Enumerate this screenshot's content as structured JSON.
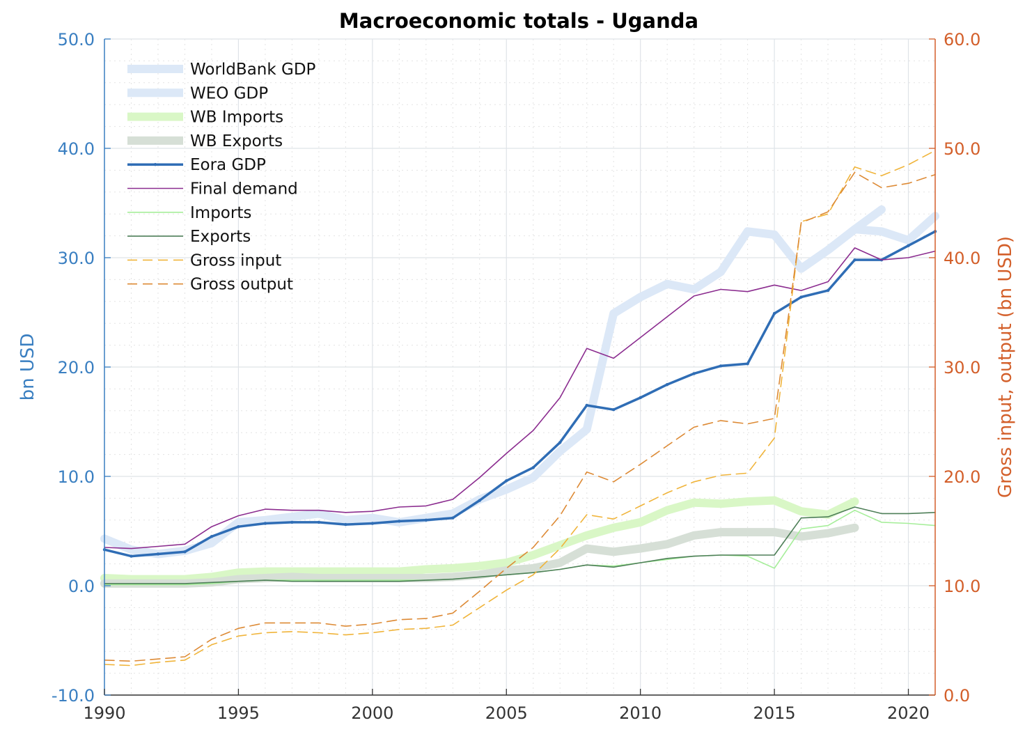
{
  "chart_data": {
    "type": "line",
    "title": "Macroeconomic totals - Uganda",
    "ylabel_left": "bn USD",
    "ylabel_right": "Gross input, output (bn USD)",
    "xlim": [
      1990,
      2021
    ],
    "ylim_left": [
      -10,
      50
    ],
    "ylim_right": [
      0,
      60
    ],
    "x_ticks": [
      1990,
      1995,
      2000,
      2005,
      2010,
      2015,
      2020
    ],
    "y_ticks_left": [
      "-10.0",
      "0.0",
      "10.0",
      "20.0",
      "30.0",
      "40.0",
      "50.0"
    ],
    "y_ticks_right": [
      "0.0",
      "10.0",
      "20.0",
      "30.0",
      "40.0",
      "50.0",
      "60.0"
    ],
    "grid": true,
    "legend_position": "top-left",
    "series": [
      {
        "name": "WorldBank GDP",
        "axis": "left",
        "color": "#dce8f7",
        "style": "thick",
        "x": [
          1990,
          1991,
          1992,
          1993,
          1994,
          1995,
          1996,
          1997,
          1998,
          1999,
          2000,
          2001,
          2002,
          2003,
          2004,
          2005,
          2006,
          2007,
          2008,
          2009,
          2010,
          2011,
          2012,
          2013,
          2014,
          2015,
          2016,
          2017,
          2018,
          2019
        ],
        "y": [
          4.3,
          3.3,
          2.9,
          3.2,
          3.9,
          5.8,
          6.0,
          6.3,
          6.6,
          6.0,
          6.2,
          5.8,
          6.2,
          6.6,
          7.9,
          8.8,
          9.9,
          12.3,
          14.3,
          24.9,
          26.4,
          27.6,
          27.1,
          28.7,
          32.4,
          32.1,
          29.0,
          30.7,
          32.6,
          34.4
        ]
      },
      {
        "name": "WEO GDP",
        "axis": "left",
        "color": "#dce8f7",
        "style": "thick",
        "x": [
          2015,
          2016,
          2017,
          2018,
          2019,
          2020,
          2021
        ],
        "y": [
          32.1,
          29.0,
          30.7,
          32.6,
          32.4,
          31.6,
          33.8
        ]
      },
      {
        "name": "WB Imports",
        "axis": "left",
        "color": "#d9f7c6",
        "style": "thick",
        "x": [
          1990,
          1991,
          1992,
          1993,
          1994,
          1995,
          1996,
          1997,
          1998,
          1999,
          2000,
          2001,
          2002,
          2003,
          2004,
          2005,
          2006,
          2007,
          2008,
          2009,
          2010,
          2011,
          2012,
          2013,
          2014,
          2015,
          2016,
          2017,
          2018
        ],
        "y": [
          0.7,
          0.6,
          0.6,
          0.6,
          0.8,
          1.2,
          1.3,
          1.3,
          1.3,
          1.3,
          1.3,
          1.3,
          1.5,
          1.6,
          1.8,
          2.1,
          2.8,
          3.7,
          4.6,
          5.3,
          5.8,
          6.9,
          7.6,
          7.5,
          7.7,
          7.8,
          6.8,
          6.5,
          7.7
        ]
      },
      {
        "name": "WB Exports",
        "axis": "left",
        "color": "#d6dfd6",
        "style": "thick",
        "x": [
          1990,
          1991,
          1992,
          1993,
          1994,
          1995,
          1996,
          1997,
          1998,
          1999,
          2000,
          2001,
          2002,
          2003,
          2004,
          2005,
          2006,
          2007,
          2008,
          2009,
          2010,
          2011,
          2012,
          2013,
          2014,
          2015,
          2016,
          2017,
          2018
        ],
        "y": [
          0.2,
          0.2,
          0.2,
          0.2,
          0.3,
          0.6,
          0.7,
          0.8,
          0.7,
          0.7,
          0.7,
          0.7,
          0.7,
          0.8,
          1.0,
          1.4,
          1.6,
          2.1,
          3.4,
          3.1,
          3.4,
          3.8,
          4.6,
          4.9,
          4.9,
          4.9,
          4.5,
          4.8,
          5.3
        ]
      },
      {
        "name": "Eora GDP",
        "axis": "left",
        "color": "#2f6db5",
        "style": "main",
        "x": [
          1990,
          1991,
          1992,
          1993,
          1994,
          1995,
          1996,
          1997,
          1998,
          1999,
          2000,
          2001,
          2002,
          2003,
          2004,
          2005,
          2006,
          2007,
          2008,
          2009,
          2010,
          2011,
          2012,
          2013,
          2014,
          2015,
          2016,
          2017,
          2018,
          2019,
          2020,
          2021
        ],
        "y": [
          3.3,
          2.7,
          2.9,
          3.1,
          4.5,
          5.4,
          5.7,
          5.8,
          5.8,
          5.6,
          5.7,
          5.9,
          6.0,
          6.2,
          7.8,
          9.6,
          10.8,
          13.1,
          16.5,
          16.1,
          17.2,
          18.4,
          19.4,
          20.1,
          20.3,
          24.9,
          26.4,
          27.0,
          29.8,
          29.8,
          31.1,
          32.4
        ]
      },
      {
        "name": "Final demand",
        "axis": "left",
        "color": "#8b2c8f",
        "style": "thin",
        "x": [
          1990,
          1991,
          1992,
          1993,
          1994,
          1995,
          1996,
          1997,
          1998,
          1999,
          2000,
          2001,
          2002,
          2003,
          2004,
          2005,
          2006,
          2007,
          2008,
          2009,
          2010,
          2011,
          2012,
          2013,
          2014,
          2015,
          2016,
          2017,
          2018,
          2019,
          2020,
          2021
        ],
        "y": [
          3.5,
          3.4,
          3.6,
          3.8,
          5.4,
          6.4,
          7.0,
          6.9,
          6.9,
          6.7,
          6.8,
          7.2,
          7.3,
          7.9,
          9.9,
          12.1,
          14.2,
          17.2,
          21.7,
          20.8,
          22.7,
          24.6,
          26.5,
          27.1,
          26.9,
          27.5,
          27.0,
          27.8,
          30.9,
          29.8,
          30.0,
          30.6
        ]
      },
      {
        "name": "Imports",
        "axis": "left",
        "color": "#a6ee9a",
        "style": "thin",
        "x": [
          1990,
          1991,
          1992,
          1993,
          1994,
          1995,
          1996,
          1997,
          1998,
          1999,
          2000,
          2001,
          2002,
          2003,
          2004,
          2005,
          2006,
          2007,
          2008,
          2009,
          2010,
          2011,
          2012,
          2013,
          2014,
          2015,
          2016,
          2017,
          2018,
          2019,
          2020,
          2021
        ],
        "y": [
          0.1,
          0.1,
          0.1,
          0.1,
          0.2,
          0.4,
          0.5,
          0.5,
          0.5,
          0.5,
          0.5,
          0.5,
          0.5,
          0.6,
          0.8,
          1.0,
          1.2,
          1.5,
          1.9,
          1.8,
          2.1,
          2.4,
          2.7,
          2.8,
          2.7,
          1.6,
          5.2,
          5.5,
          6.9,
          5.8,
          5.7,
          5.5
        ]
      },
      {
        "name": "Exports",
        "axis": "left",
        "color": "#4e7f58",
        "style": "thin",
        "x": [
          1990,
          1991,
          1992,
          1993,
          1994,
          1995,
          1996,
          1997,
          1998,
          1999,
          2000,
          2001,
          2002,
          2003,
          2004,
          2005,
          2006,
          2007,
          2008,
          2009,
          2010,
          2011,
          2012,
          2013,
          2014,
          2015,
          2016,
          2017,
          2018,
          2019,
          2020,
          2021
        ],
        "y": [
          0.2,
          0.2,
          0.2,
          0.2,
          0.3,
          0.4,
          0.5,
          0.4,
          0.4,
          0.4,
          0.4,
          0.4,
          0.5,
          0.6,
          0.8,
          1.0,
          1.2,
          1.5,
          1.9,
          1.7,
          2.1,
          2.5,
          2.7,
          2.8,
          2.8,
          2.8,
          6.2,
          6.3,
          7.2,
          6.6,
          6.6,
          6.7
        ]
      },
      {
        "name": "Gross input",
        "axis": "right",
        "color": "#f0b43a",
        "style": "dashed",
        "x": [
          1990,
          1991,
          1992,
          1993,
          1994,
          1995,
          1996,
          1997,
          1998,
          1999,
          2000,
          2001,
          2002,
          2003,
          2004,
          2005,
          2006,
          2007,
          2008,
          2009,
          2010,
          2011,
          2012,
          2013,
          2014,
          2015,
          2016,
          2017,
          2018,
          2019,
          2020,
          2021
        ],
        "y": [
          2.8,
          2.7,
          3.0,
          3.2,
          4.6,
          5.4,
          5.7,
          5.8,
          5.7,
          5.5,
          5.7,
          6.0,
          6.1,
          6.4,
          8.0,
          9.6,
          11.0,
          13.4,
          16.5,
          16.1,
          17.3,
          18.5,
          19.5,
          20.1,
          20.3,
          23.5,
          43.3,
          44.0,
          48.3,
          47.5,
          48.5,
          49.8
        ]
      },
      {
        "name": "Gross output",
        "axis": "right",
        "color": "#dd8a35",
        "style": "dashed",
        "x": [
          1990,
          1991,
          1992,
          1993,
          1994,
          1995,
          1996,
          1997,
          1998,
          1999,
          2000,
          2001,
          2002,
          2003,
          2004,
          2005,
          2006,
          2007,
          2008,
          2009,
          2010,
          2011,
          2012,
          2013,
          2014,
          2015,
          2016,
          2017,
          2018,
          2019,
          2020,
          2021
        ],
        "y": [
          3.2,
          3.1,
          3.3,
          3.5,
          5.1,
          6.1,
          6.6,
          6.6,
          6.6,
          6.3,
          6.5,
          6.9,
          7.0,
          7.5,
          9.5,
          11.6,
          13.5,
          16.4,
          20.4,
          19.5,
          21.1,
          22.8,
          24.5,
          25.1,
          24.8,
          25.3,
          43.2,
          44.2,
          47.8,
          46.4,
          46.8,
          47.6
        ]
      }
    ]
  }
}
